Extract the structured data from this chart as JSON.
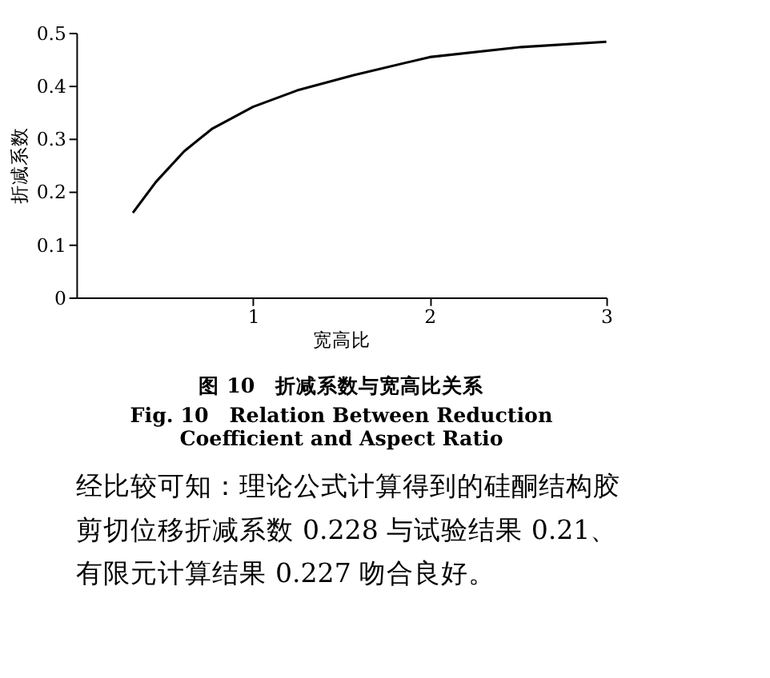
{
  "chart_data": {
    "type": "line",
    "title": "图 10　折减系数与宽高比关系",
    "subtitle": "Fig. 10　Relation Between Reduction Coefficient and Aspect Ratio",
    "xlabel": "宽高比",
    "ylabel": "折减系数",
    "x": [
      0.32,
      0.45,
      0.61,
      0.77,
      1.0,
      1.25,
      1.57,
      2.0,
      2.52,
      3.0
    ],
    "series": [
      {
        "color": "#000000",
        "values": [
          0.16,
          0.218,
          0.276,
          0.319,
          0.36,
          0.391,
          0.42,
          0.454,
          0.473,
          0.483
        ]
      }
    ],
    "xlim": [
      0,
      3
    ],
    "xticks": [
      1,
      2,
      3
    ],
    "ylim": [
      0,
      0.5
    ],
    "yticks": [
      0,
      0.1,
      0.2,
      0.3,
      0.4,
      0.5
    ],
    "grid": false,
    "marker": "none",
    "line_style": "solid",
    "annotations": [
      "经比较可知：理论公式计算得到的硅酮结构胶剪切位移折减系数 0.228 与试验结果 0.21、有限元计算结果 0.227 吻合良好。"
    ]
  }
}
